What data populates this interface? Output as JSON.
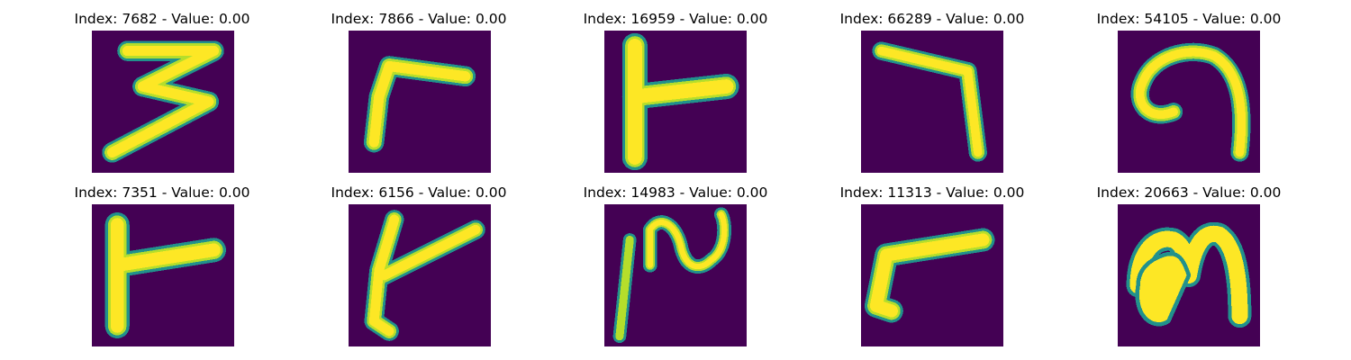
{
  "colors": {
    "background": "#440154",
    "stroke_edge": "#21918c",
    "stroke_mid": "#5ec962",
    "stroke_core": "#fde725"
  },
  "panels": [
    {
      "title": "Index: 7682 - Value: 0.00",
      "index": 7682,
      "value": 0.0,
      "glyph": "digit-3-like"
    },
    {
      "title": "Index: 7866 - Value: 0.00",
      "index": 7866,
      "value": 0.0,
      "glyph": "corner-stroke"
    },
    {
      "title": "Index: 16959 - Value: 0.00",
      "index": 16959,
      "value": 0.0,
      "glyph": "t-shape"
    },
    {
      "title": "Index: 66289 - Value: 0.00",
      "index": 66289,
      "value": 0.0,
      "glyph": "right-angle-down"
    },
    {
      "title": "Index: 54105 - Value: 0.00",
      "index": 54105,
      "value": 0.0,
      "glyph": "curl"
    },
    {
      "title": "Index: 7351 - Value: 0.00",
      "index": 7351,
      "value": 0.0,
      "glyph": "t-shape"
    },
    {
      "title": "Index: 6156 - Value: 0.00",
      "index": 6156,
      "value": 0.0,
      "glyph": "y-stroke"
    },
    {
      "title": "Index: 14983 - Value: 0.00",
      "index": 14983,
      "value": 0.0,
      "glyph": "wave"
    },
    {
      "title": "Index: 11313 - Value: 0.00",
      "index": 11313,
      "value": 0.0,
      "glyph": "slanted-corner"
    },
    {
      "title": "Index: 20663 - Value: 0.00",
      "index": 20663,
      "value": 0.0,
      "glyph": "arch"
    }
  ]
}
